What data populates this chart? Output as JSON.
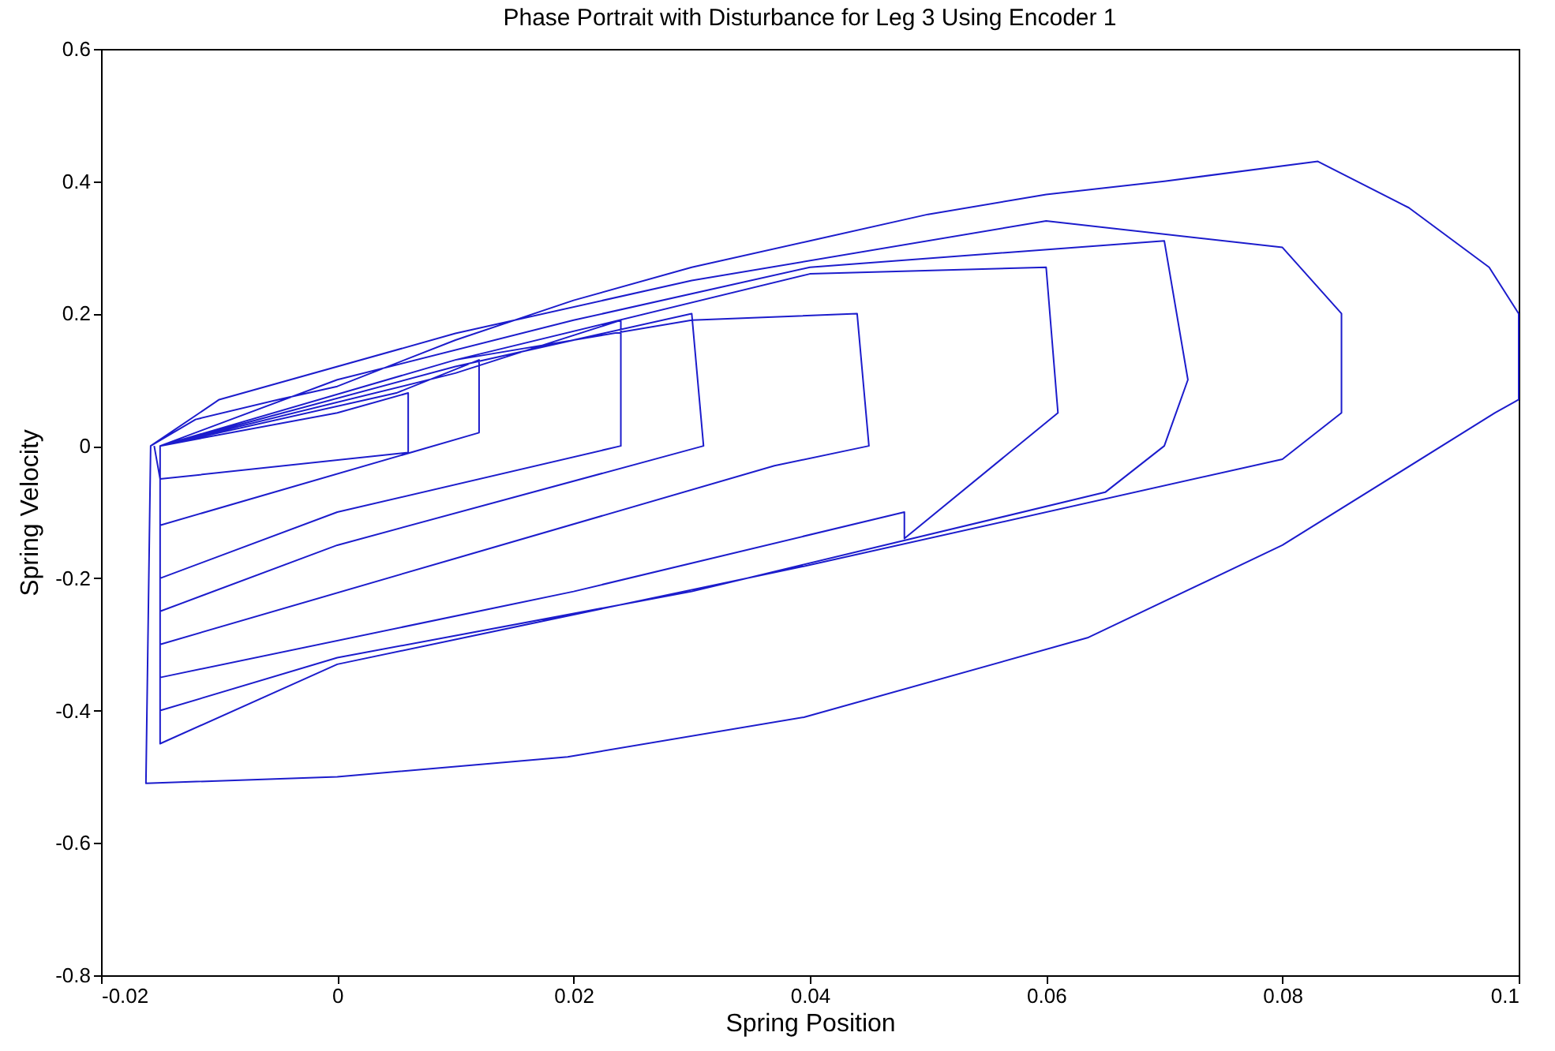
{
  "chart_data": {
    "type": "line",
    "title": "Phase Portrait with Disturbance for Leg 3 Using Encoder 1",
    "xlabel": "Spring Position",
    "ylabel": "Spring Velocity",
    "x": [
      -0.0158,
      -0.012,
      -0.005,
      0.0,
      0.01,
      0.02,
      0.03,
      0.04,
      0.05,
      0.06,
      0.07,
      0.083,
      0.0907,
      0.0975,
      0.1,
      0.1,
      0.098,
      0.08,
      0.0635,
      0.0395,
      0.0195,
      0.0,
      -0.0162,
      -0.0158,
      -0.01,
      0.01,
      0.03,
      0.06,
      0.08,
      0.085,
      0.085,
      0.08,
      0.04,
      0.0,
      -0.015,
      -0.015,
      0.0,
      0.02,
      0.04,
      0.07,
      0.072,
      0.07,
      0.065,
      0.03,
      0.0,
      -0.015,
      -0.015,
      0.01,
      0.04,
      0.06,
      0.061,
      0.048,
      0.048,
      0.02,
      -0.015,
      -0.015,
      0.01,
      0.03,
      0.044,
      0.045,
      0.037,
      0.01,
      -0.015,
      -0.015,
      0.01,
      0.03,
      0.031,
      0.0,
      -0.015,
      -0.015,
      0.01,
      0.024,
      0.024,
      0.0,
      -0.015,
      -0.015,
      0.005,
      0.012,
      0.012,
      -0.015,
      -0.015,
      0.0,
      0.006,
      0.006,
      -0.015,
      -0.0155
    ],
    "series": [
      {
        "color": "#1c1ccc",
        "values": [
          0.0,
          0.04,
          0.07,
          0.09,
          0.16,
          0.22,
          0.27,
          0.31,
          0.35,
          0.38,
          0.4,
          0.43,
          0.36,
          0.27,
          0.2,
          0.07,
          0.05,
          -0.15,
          -0.29,
          -0.41,
          -0.47,
          -0.5,
          -0.51,
          0.0,
          0.07,
          0.17,
          0.25,
          0.34,
          0.3,
          0.2,
          0.05,
          -0.02,
          -0.18,
          -0.33,
          -0.45,
          0.0,
          0.1,
          0.19,
          0.27,
          0.31,
          0.1,
          0.0,
          -0.07,
          -0.22,
          -0.32,
          -0.4,
          0.0,
          0.13,
          0.26,
          0.27,
          0.05,
          -0.14,
          -0.1,
          -0.22,
          -0.35,
          0.0,
          0.13,
          0.19,
          0.2,
          0.0,
          -0.03,
          -0.17,
          -0.3,
          0.0,
          0.12,
          0.2,
          0.0,
          -0.15,
          -0.25,
          0.0,
          0.11,
          0.19,
          0.0,
          -0.1,
          -0.2,
          0.0,
          0.08,
          0.13,
          0.02,
          -0.12,
          0.0,
          0.05,
          0.08,
          -0.01,
          -0.05,
          0.0
        ]
      }
    ],
    "xlim": [
      -0.02,
      0.1
    ],
    "xticks": [
      -0.02,
      0,
      0.02,
      0.04,
      0.06,
      0.08,
      0.1
    ],
    "ylim": [
      -0.8,
      0.6
    ],
    "yticks": [
      -0.8,
      -0.6,
      -0.4,
      -0.2,
      0,
      0.2,
      0.4,
      0.6
    ],
    "grid": false,
    "line_style": "solid",
    "marker": "none"
  }
}
